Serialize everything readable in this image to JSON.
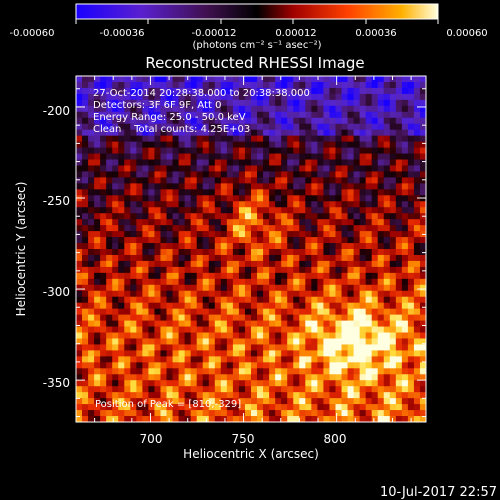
{
  "colorbar": {
    "ticks": [
      "-0.00060",
      "-0.00036",
      "-0.00012",
      "0.00012",
      "0.00036",
      "0.00060"
    ],
    "unit_label": "(photons cm⁻² s⁻¹ asec⁻²)",
    "range": [
      -0.0006,
      0.0006
    ],
    "colormap": [
      "#2a00ff",
      "#6a1fb0",
      "#3a0a2a",
      "#b01010",
      "#ff5a00",
      "#ffb000",
      "#ffffd0"
    ]
  },
  "chart_data": {
    "type": "heatmap",
    "title": "Reconstructed RHESSI Image",
    "xlabel": "Heliocentric X (arcsec)",
    "ylabel": "Heliocentric Y (arcsec)",
    "xlim": [
      660,
      848
    ],
    "ylim": [
      -373,
      -183
    ],
    "xticks": [
      "700",
      "750",
      "800"
    ],
    "yticks": [
      "-200",
      "-250",
      "-300",
      "-350"
    ],
    "grid": false,
    "peak": {
      "x": 810,
      "y": -329
    },
    "annotations": {
      "time_range": "27-Oct-2014 20:28:38.000 to 20:38:38.000",
      "detectors": "Detectors: 3F 6F 9F, Att 0",
      "energy_range": "Energy Range: 25.0 - 50.0 keV",
      "method_counts": "Clean    Total counts: 4.25E+03",
      "peak_position": "Position of Peak = [810,-329]"
    }
  },
  "timestamp": "10-Jul-2017 22:57"
}
